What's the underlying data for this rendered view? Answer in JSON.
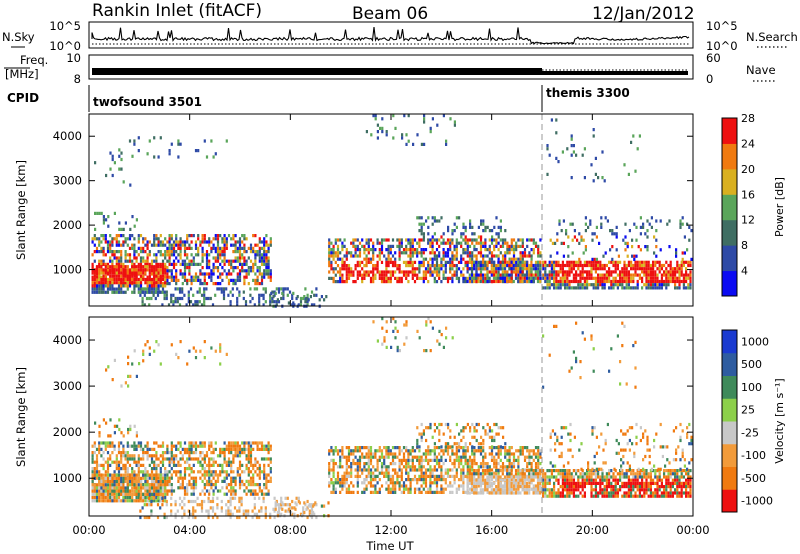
{
  "header": {
    "station": "Rankin Inlet (fitACF)",
    "beam": "Beam 06",
    "date": "12/Jan/2012"
  },
  "noise_panel": {
    "left_label": "N.Sky",
    "right_label": "N.Search",
    "left_ticks": [
      "10^5",
      "10^0"
    ],
    "right_ticks": [
      "10^5",
      "10^0"
    ]
  },
  "freq_panel": {
    "left_label_line1": "Freq.",
    "left_label_line2": "[MHz]",
    "right_label": "Nave",
    "left_ticks": [
      "10",
      "8"
    ],
    "right_ticks": [
      "60",
      "0"
    ]
  },
  "cpid_panel": {
    "label": "CPID",
    "modes": [
      {
        "name": "twofsound 3501",
        "start_hour": 0
      },
      {
        "name": "themis 3300",
        "start_hour": 18
      }
    ]
  },
  "chart_data": [
    {
      "type": "heatmap",
      "name": "power",
      "ylabel": "Slant Range [km]",
      "xlabel": "",
      "xlim": [
        0,
        24
      ],
      "ylim": [
        180,
        4500
      ],
      "y_ticks": [
        1000,
        2000,
        3000,
        4000
      ],
      "x_ticks": [
        0,
        4,
        8,
        12,
        16,
        20,
        24
      ],
      "colorbar": {
        "label": "Power [dB]",
        "ticks": [
          "4",
          "8",
          "12",
          "16",
          "20",
          "24",
          "28"
        ],
        "colors": [
          "#0b0bf2",
          "#2e4aa6",
          "#3f6e63",
          "#5aa55a",
          "#d9b020",
          "#f07a10",
          "#ee1010"
        ]
      }
    },
    {
      "type": "heatmap",
      "name": "velocity",
      "ylabel": "Slant Range [km]",
      "xlabel": "Time UT",
      "xlim": [
        0,
        24
      ],
      "ylim": [
        180,
        4500
      ],
      "y_ticks": [
        1000,
        2000,
        3000,
        4000
      ],
      "x_ticks": [
        0,
        4,
        8,
        12,
        16,
        20,
        24
      ],
      "x_tick_labels": [
        "00:00",
        "04:00",
        "08:00",
        "12:00",
        "16:00",
        "20:00",
        "00:00"
      ],
      "colorbar": {
        "label": "Velocity [m s⁻¹]",
        "ticks": [
          "-1000",
          "-500",
          "-100",
          "-25",
          "25",
          "100",
          "500",
          "1000"
        ],
        "colors": [
          "#ee1010",
          "#f07a10",
          "#f29b3a",
          "#c8c8c8",
          "#8ccf4a",
          "#3f8a5a",
          "#2e5ca0",
          "#1a3ad0"
        ]
      }
    }
  ]
}
